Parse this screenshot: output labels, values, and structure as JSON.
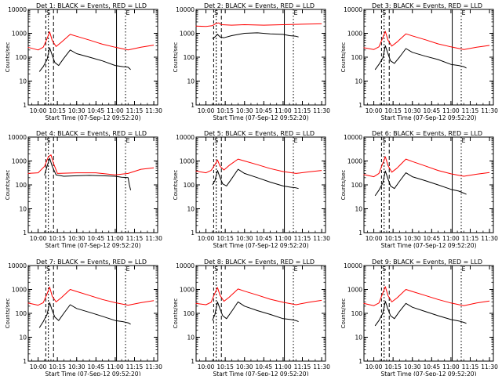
{
  "chart_data": [
    {
      "type": "line",
      "title": "Det 1: BLACK = Events, RED = LLD",
      "xlabel": "Start Time (07-Sep-12 09:52:20)",
      "ylabel": "Counts/sec",
      "xlim": [
        "09:52:20",
        "11:33:00"
      ],
      "ylim": [
        1,
        10000
      ],
      "yscale": "log",
      "x_ticks": [
        "10:00",
        "10:15",
        "10:30",
        "10:45",
        "11:00",
        "11:15",
        "11:30"
      ],
      "y_ticks": [
        "1",
        "10",
        "100",
        "1000",
        "10000"
      ],
      "marker_labels": [
        "S",
        "E"
      ],
      "series": [
        {
          "name": "BLACK = Events",
          "color": "#000000",
          "x": [
            "10:01",
            "10:04",
            "10:07",
            "10:09",
            "10:11",
            "10:13",
            "10:16",
            "10:20",
            "10:25",
            "10:30",
            "10:40",
            "10:50",
            "11:00",
            "11:06",
            "11:10",
            "11:12"
          ],
          "y": [
            25,
            40,
            80,
            250,
            120,
            60,
            45,
            90,
            200,
            140,
            100,
            70,
            45,
            40,
            38,
            30
          ]
        },
        {
          "name": "RED = LLD",
          "color": "#ff0000",
          "x": [
            "09:52",
            "10:00",
            "10:04",
            "10:07",
            "10:09",
            "10:11",
            "10:14",
            "10:18",
            "10:25",
            "10:30",
            "10:40",
            "10:50",
            "11:00",
            "11:10",
            "11:20",
            "11:30"
          ],
          "y": [
            260,
            200,
            260,
            600,
            1150,
            500,
            280,
            420,
            900,
            750,
            520,
            350,
            260,
            200,
            260,
            320
          ]
        }
      ]
    },
    {
      "type": "line",
      "title": "Det 2: BLACK = Events, RED = LLD",
      "xlabel": "Start Time (07-Sep-12 09:52:20)",
      "ylabel": "Counts/sec",
      "xlim": [
        "09:52:20",
        "11:33:00"
      ],
      "ylim": [
        1,
        10000
      ],
      "yscale": "log",
      "x_ticks": [
        "10:00",
        "10:15",
        "10:30",
        "10:45",
        "11:00",
        "11:15",
        "11:30"
      ],
      "y_ticks": [
        "1",
        "10",
        "100",
        "1000",
        "10000"
      ],
      "marker_labels": [
        "S",
        "E"
      ],
      "series": [
        {
          "name": "BLACK = Events",
          "color": "#000000",
          "x": [
            "10:05",
            "10:07",
            "10:09",
            "10:11",
            "10:14",
            "10:20",
            "10:30",
            "10:40",
            "10:50",
            "11:00",
            "11:05",
            "11:10",
            "11:12"
          ],
          "y": [
            600,
            700,
            900,
            700,
            650,
            800,
            1000,
            1050,
            950,
            900,
            800,
            750,
            700
          ]
        },
        {
          "name": "RED = LLD",
          "color": "#ff0000",
          "x": [
            "09:52",
            "10:00",
            "10:05",
            "10:08",
            "10:10",
            "10:12",
            "10:20",
            "10:30",
            "10:45",
            "11:00",
            "11:15",
            "11:30"
          ],
          "y": [
            2000,
            1950,
            2100,
            2600,
            2700,
            2300,
            2200,
            2300,
            2200,
            2300,
            2400,
            2500
          ]
        }
      ]
    },
    {
      "type": "line",
      "title": "Det 3: BLACK = Events, RED = LLD",
      "xlabel": "Start Time (07-Sep-12 09:52:20)",
      "ylabel": "Counts/sec",
      "xlim": [
        "09:52:20",
        "11:33:00"
      ],
      "ylim": [
        1,
        10000
      ],
      "yscale": "log",
      "x_ticks": [
        "10:00",
        "10:15",
        "10:30",
        "10:45",
        "11:00",
        "11:15",
        "11:30"
      ],
      "y_ticks": [
        "1",
        "10",
        "100",
        "1000",
        "10000"
      ],
      "marker_labels": [
        "S",
        "E"
      ],
      "series": [
        {
          "name": "BLACK = Events",
          "color": "#000000",
          "x": [
            "10:01",
            "10:04",
            "10:07",
            "10:09",
            "10:11",
            "10:13",
            "10:16",
            "10:20",
            "10:25",
            "10:30",
            "10:40",
            "10:50",
            "11:00",
            "11:06",
            "11:10",
            "11:12"
          ],
          "y": [
            30,
            50,
            90,
            300,
            140,
            70,
            55,
            100,
            230,
            160,
            110,
            80,
            50,
            45,
            40,
            35
          ]
        },
        {
          "name": "RED = LLD",
          "color": "#ff0000",
          "x": [
            "09:52",
            "10:00",
            "10:04",
            "10:07",
            "10:09",
            "10:11",
            "10:14",
            "10:18",
            "10:25",
            "10:30",
            "10:40",
            "10:50",
            "11:00",
            "11:10",
            "11:20",
            "11:30"
          ],
          "y": [
            250,
            210,
            270,
            650,
            1200,
            520,
            290,
            430,
            950,
            780,
            540,
            360,
            270,
            210,
            260,
            310
          ]
        }
      ]
    },
    {
      "type": "line",
      "title": "Det 4: BLACK = Events, RED = LLD",
      "xlabel": "Start Time (07-Sep-12 09:52:20)",
      "ylabel": "Counts/sec",
      "xlim": [
        "09:52:20",
        "11:33:00"
      ],
      "ylim": [
        1,
        10000
      ],
      "yscale": "log",
      "x_ticks": [
        "10:00",
        "10:15",
        "10:30",
        "10:45",
        "11:00",
        "11:15",
        "11:30"
      ],
      "y_ticks": [
        "1",
        "10",
        "100",
        "1000",
        "10000"
      ],
      "marker_labels": [
        "S",
        "E"
      ],
      "series": [
        {
          "name": "BLACK = Events",
          "color": "#000000",
          "x": [
            "10:05",
            "10:07",
            "10:09",
            "10:11",
            "10:14",
            "10:20",
            "10:30",
            "10:40",
            "10:50",
            "11:00",
            "11:05",
            "11:10",
            "11:11",
            "11:12"
          ],
          "y": [
            250,
            600,
            1300,
            600,
            260,
            230,
            240,
            250,
            240,
            230,
            210,
            200,
            100,
            60
          ]
        },
        {
          "name": "RED = LLD",
          "color": "#ff0000",
          "x": [
            "09:52",
            "10:00",
            "10:05",
            "10:08",
            "10:10",
            "10:12",
            "10:15",
            "10:30",
            "10:45",
            "11:00",
            "11:10",
            "11:20",
            "11:30"
          ],
          "y": [
            300,
            320,
            600,
            1500,
            1800,
            800,
            300,
            320,
            320,
            260,
            300,
            450,
            520
          ]
        }
      ]
    },
    {
      "type": "line",
      "title": "Det 5: BLACK = Events, RED = LLD",
      "xlabel": "Start Time (07-Sep-12 09:52:20)",
      "ylabel": "Counts/sec",
      "xlim": [
        "09:52:20",
        "11:33:00"
      ],
      "ylim": [
        1,
        10000
      ],
      "yscale": "log",
      "x_ticks": [
        "10:00",
        "10:15",
        "10:30",
        "10:45",
        "11:00",
        "11:15",
        "11:30"
      ],
      "y_ticks": [
        "1",
        "10",
        "100",
        "1000",
        "10000"
      ],
      "marker_labels": [
        "S",
        "E"
      ],
      "series": [
        {
          "name": "BLACK = Events",
          "color": "#000000",
          "x": [
            "10:05",
            "10:07",
            "10:09",
            "10:11",
            "10:13",
            "10:16",
            "10:20",
            "10:25",
            "10:30",
            "10:40",
            "10:50",
            "11:00",
            "11:06",
            "11:10",
            "11:12"
          ],
          "y": [
            100,
            150,
            400,
            200,
            110,
            90,
            180,
            450,
            300,
            200,
            130,
            90,
            80,
            75,
            70
          ]
        },
        {
          "name": "RED = LLD",
          "color": "#ff0000",
          "x": [
            "09:52",
            "10:00",
            "10:04",
            "10:07",
            "10:09",
            "10:11",
            "10:14",
            "10:18",
            "10:25",
            "10:30",
            "10:40",
            "10:50",
            "11:00",
            "11:10",
            "11:20",
            "11:30"
          ],
          "y": [
            380,
            320,
            400,
            700,
            1100,
            600,
            420,
            650,
            1200,
            1000,
            700,
            480,
            360,
            300,
            350,
            400
          ]
        }
      ]
    },
    {
      "type": "line",
      "title": "Det 6: BLACK = Events, RED = LLD",
      "xlabel": "Start Time (07-Sep-12 09:52:20)",
      "ylabel": "Counts/sec",
      "xlim": [
        "09:52:20",
        "11:33:00"
      ],
      "ylim": [
        1,
        10000
      ],
      "yscale": "log",
      "x_ticks": [
        "10:00",
        "10:15",
        "10:30",
        "10:45",
        "11:00",
        "11:15",
        "11:30"
      ],
      "y_ticks": [
        "1",
        "10",
        "100",
        "1000",
        "10000"
      ],
      "marker_labels": [
        "S",
        "E"
      ],
      "series": [
        {
          "name": "BLACK = Events",
          "color": "#000000",
          "x": [
            "10:01",
            "10:04",
            "10:07",
            "10:09",
            "10:11",
            "10:13",
            "10:16",
            "10:20",
            "10:25",
            "10:30",
            "10:40",
            "10:50",
            "11:00",
            "11:06",
            "11:10",
            "11:12"
          ],
          "y": [
            35,
            60,
            120,
            380,
            180,
            90,
            70,
            140,
            320,
            220,
            150,
            100,
            65,
            55,
            45,
            40
          ]
        },
        {
          "name": "RED = LLD",
          "color": "#ff0000",
          "x": [
            "09:52",
            "10:00",
            "10:04",
            "10:07",
            "10:09",
            "10:11",
            "10:14",
            "10:18",
            "10:25",
            "10:30",
            "10:40",
            "10:50",
            "11:00",
            "11:10",
            "11:20",
            "11:30"
          ],
          "y": [
            270,
            220,
            300,
            800,
            1500,
            650,
            340,
            500,
            1200,
            950,
            620,
            400,
            290,
            230,
            280,
            330
          ]
        }
      ]
    },
    {
      "type": "line",
      "title": "Det 7: BLACK = Events, RED = LLD",
      "xlabel": "Start Time (07-Sep-12 09:52:20)",
      "ylabel": "Counts/sec",
      "xlim": [
        "09:52:20",
        "11:33:00"
      ],
      "ylim": [
        1,
        10000
      ],
      "yscale": "log",
      "x_ticks": [
        "10:00",
        "10:15",
        "10:30",
        "10:45",
        "11:00",
        "11:15",
        "11:30"
      ],
      "y_ticks": [
        "1",
        "10",
        "100",
        "1000",
        "10000"
      ],
      "marker_labels": [
        "S",
        "E"
      ],
      "series": [
        {
          "name": "BLACK = Events",
          "color": "#000000",
          "x": [
            "10:01",
            "10:04",
            "10:07",
            "10:09",
            "10:11",
            "10:13",
            "10:16",
            "10:20",
            "10:25",
            "10:30",
            "10:40",
            "10:50",
            "11:00",
            "11:06",
            "11:10",
            "11:12"
          ],
          "y": [
            25,
            45,
            90,
            280,
            130,
            70,
            50,
            100,
            230,
            160,
            110,
            75,
            50,
            45,
            40,
            35
          ]
        },
        {
          "name": "RED = LLD",
          "color": "#ff0000",
          "x": [
            "09:52",
            "10:00",
            "10:04",
            "10:07",
            "10:09",
            "10:11",
            "10:14",
            "10:18",
            "10:25",
            "10:30",
            "10:40",
            "10:50",
            "11:00",
            "11:10",
            "11:20",
            "11:30"
          ],
          "y": [
            270,
            220,
            280,
            650,
            1250,
            520,
            300,
            450,
            1000,
            820,
            560,
            380,
            280,
            220,
            280,
            340
          ]
        }
      ]
    },
    {
      "type": "line",
      "title": "Det 8: BLACK = Events, RED = LLD",
      "xlabel": "Start Time (07-Sep-12 09:52:20)",
      "ylabel": "Counts/sec",
      "xlim": [
        "09:52:20",
        "11:33:00"
      ],
      "ylim": [
        1,
        10000
      ],
      "yscale": "log",
      "x_ticks": [
        "10:00",
        "10:15",
        "10:30",
        "10:45",
        "11:00",
        "11:15",
        "11:30"
      ],
      "y_ticks": [
        "1",
        "10",
        "100",
        "1000",
        "10000"
      ],
      "marker_labels": [
        "S",
        "E"
      ],
      "series": [
        {
          "name": "BLACK = Events",
          "color": "#000000",
          "x": [
            "10:05",
            "10:07",
            "10:09",
            "10:11",
            "10:13",
            "10:16",
            "10:20",
            "10:25",
            "10:30",
            "10:40",
            "10:50",
            "11:00",
            "11:06",
            "11:10",
            "11:12"
          ],
          "y": [
            50,
            90,
            300,
            150,
            80,
            60,
            120,
            300,
            200,
            130,
            90,
            60,
            55,
            50,
            45
          ]
        },
        {
          "name": "RED = LLD",
          "color": "#ff0000",
          "x": [
            "09:52",
            "10:00",
            "10:04",
            "10:07",
            "10:09",
            "10:11",
            "10:14",
            "10:18",
            "10:25",
            "10:30",
            "10:40",
            "10:50",
            "11:00",
            "11:10",
            "11:20",
            "11:30"
          ],
          "y": [
            260,
            230,
            290,
            700,
            1200,
            560,
            320,
            470,
            1050,
            850,
            580,
            390,
            290,
            230,
            290,
            350
          ]
        }
      ]
    },
    {
      "type": "line",
      "title": "Det 9: BLACK = Events, RED = LLD",
      "xlabel": "Start Time (07-Sep-12 09:52:20)",
      "ylabel": "Counts/sec",
      "xlim": [
        "09:52:20",
        "11:33:00"
      ],
      "ylim": [
        1,
        10000
      ],
      "yscale": "log",
      "x_ticks": [
        "10:00",
        "10:15",
        "10:30",
        "10:45",
        "11:00",
        "11:15",
        "11:30"
      ],
      "y_ticks": [
        "1",
        "10",
        "100",
        "1000",
        "10000"
      ],
      "marker_labels": [
        "S",
        "E"
      ],
      "series": [
        {
          "name": "BLACK = Events",
          "color": "#000000",
          "x": [
            "10:01",
            "10:04",
            "10:07",
            "10:09",
            "10:11",
            "10:13",
            "10:16",
            "10:20",
            "10:25",
            "10:30",
            "10:40",
            "10:50",
            "11:00",
            "11:06",
            "11:10",
            "11:12"
          ],
          "y": [
            30,
            50,
            100,
            320,
            150,
            80,
            60,
            120,
            260,
            180,
            120,
            80,
            55,
            48,
            42,
            38
          ]
        },
        {
          "name": "RED = LLD",
          "color": "#ff0000",
          "x": [
            "09:52",
            "10:00",
            "10:04",
            "10:07",
            "10:09",
            "10:11",
            "10:14",
            "10:18",
            "10:25",
            "10:30",
            "10:40",
            "10:50",
            "11:00",
            "11:10",
            "11:20",
            "11:30"
          ],
          "y": [
            260,
            210,
            270,
            700,
            1300,
            560,
            300,
            440,
            1000,
            820,
            560,
            380,
            270,
            210,
            270,
            330
          ]
        }
      ]
    }
  ]
}
